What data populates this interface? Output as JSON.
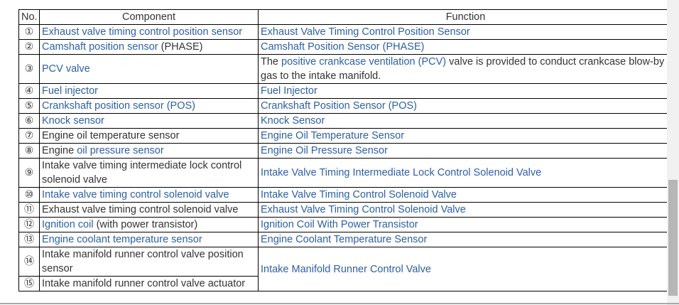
{
  "page": {
    "colors": {
      "link": "#2d5fa5",
      "text": "#333333",
      "border": "#000000",
      "scrollbar_track": "#f1f1f1",
      "scrollbar_thumb": "#b6b6b6"
    },
    "table": {
      "headers": [
        "No.",
        "Component",
        "Function"
      ],
      "rows": [
        {
          "no": "①",
          "component": [
            {
              "text": "Exhaust valve timing control position sensor",
              "link": true
            }
          ],
          "function": [
            {
              "text": "Exhaust Valve Timing Control Position Sensor",
              "link": true
            }
          ]
        },
        {
          "no": "②",
          "component": [
            {
              "text": "Camshaft position sensor",
              "link": true
            },
            {
              "text": " (PHASE)",
              "link": false
            }
          ],
          "function": [
            {
              "text": "Camshaft Position Sensor (PHASE)",
              "link": true
            }
          ]
        },
        {
          "no": "③",
          "component": [
            {
              "text": "PCV valve",
              "link": true
            }
          ],
          "function": [
            {
              "text": "The ",
              "link": false
            },
            {
              "text": "positive crankcase ventilation (PCV)",
              "link": true
            },
            {
              "text": " valve is provided to conduct crankcase blow-by gas to the intake manifold.",
              "link": false
            }
          ]
        },
        {
          "no": "④",
          "component": [
            {
              "text": "Fuel injector",
              "link": true
            }
          ],
          "function": [
            {
              "text": "Fuel Injector",
              "link": true
            }
          ]
        },
        {
          "no": "⑤",
          "component": [
            {
              "text": "Crankshaft position sensor (POS)",
              "link": true
            }
          ],
          "function": [
            {
              "text": "Crankshaft Position Sensor (POS)",
              "link": true
            }
          ]
        },
        {
          "no": "⑥",
          "component": [
            {
              "text": "Knock sensor",
              "link": true
            }
          ],
          "function": [
            {
              "text": "Knock Sensor",
              "link": true
            }
          ]
        },
        {
          "no": "⑦",
          "component": [
            {
              "text": "Engine oil temperature sensor",
              "link": false
            }
          ],
          "function": [
            {
              "text": "Engine Oil Temperature Sensor",
              "link": true
            }
          ]
        },
        {
          "no": "⑧",
          "component": [
            {
              "text": "Engine ",
              "link": false
            },
            {
              "text": "oil pressure sensor",
              "link": true
            }
          ],
          "function": [
            {
              "text": "Engine Oil Pressure Sensor",
              "link": true
            }
          ]
        },
        {
          "no": "⑨",
          "component": [
            {
              "text": "Intake valve timing intermediate lock control solenoid valve",
              "link": false
            }
          ],
          "function": [
            {
              "text": "Intake Valve Timing Intermediate Lock Control Solenoid Valve",
              "link": true
            }
          ]
        },
        {
          "no": "⑩",
          "component": [
            {
              "text": "Intake valve timing control solenoid valve",
              "link": true
            }
          ],
          "function": [
            {
              "text": "Intake Valve Timing Control Solenoid Valve",
              "link": true
            }
          ]
        },
        {
          "no": "⑪",
          "component": [
            {
              "text": "Exhaust valve timing control solenoid valve",
              "link": false
            }
          ],
          "function": [
            {
              "text": "Exhaust Valve Timing Control Solenoid Valve",
              "link": true
            }
          ]
        },
        {
          "no": "⑫",
          "component": [
            {
              "text": "Ignition coil",
              "link": true
            },
            {
              "text": " (with power transistor)",
              "link": false
            }
          ],
          "function": [
            {
              "text": "Ignition Coil With Power Transistor",
              "link": true
            }
          ]
        },
        {
          "no": "⑬",
          "component": [
            {
              "text": "Engine coolant temperature sensor",
              "link": true
            }
          ],
          "function": [
            {
              "text": "Engine Coolant Temperature Sensor",
              "link": true
            }
          ]
        },
        {
          "no": "⑭",
          "component": [
            {
              "text": "Intake manifold runner control valve position sensor",
              "link": false
            }
          ],
          "function": [
            {
              "text": "Intake Manifold Runner Control Valve",
              "link": true
            }
          ],
          "function_rowspan": 2
        },
        {
          "no": "⑮",
          "component": [
            {
              "text": "Intake manifold runner control valve actuator",
              "link": false
            }
          ],
          "function": null
        }
      ]
    }
  }
}
